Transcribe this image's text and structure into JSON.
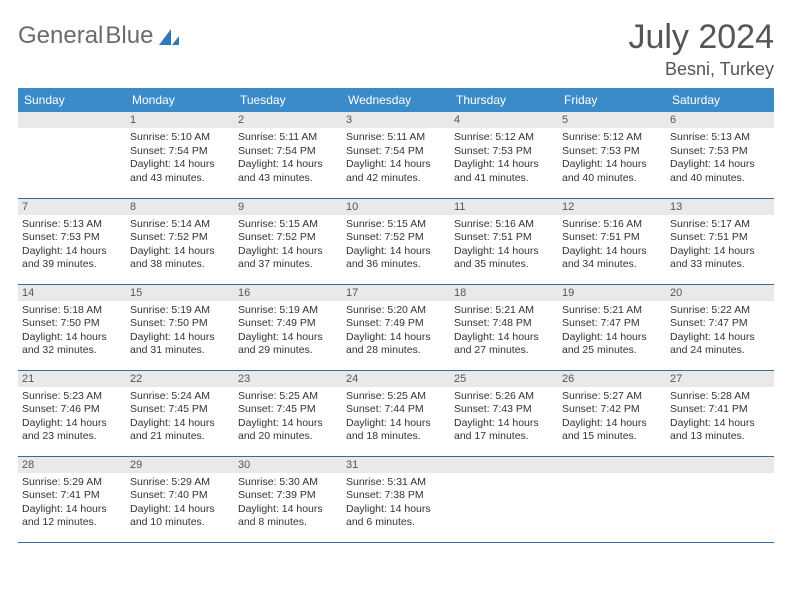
{
  "logo": {
    "text_gray": "General",
    "text_blue": "Blue"
  },
  "header": {
    "month_title": "July 2024",
    "location": "Besni, Turkey"
  },
  "columns": [
    "Sunday",
    "Monday",
    "Tuesday",
    "Wednesday",
    "Thursday",
    "Friday",
    "Saturday"
  ],
  "colors": {
    "header_bg": "#3b8bc9",
    "row_divider": "#2d6ea8",
    "daynum_bg": "#e9e9e9",
    "logo_gray": "#6b6b6b",
    "logo_blue": "#2f78bc"
  },
  "weeks": [
    [
      {
        "day": "",
        "sr": "",
        "ss": "",
        "dl": ""
      },
      {
        "day": "1",
        "sr": "Sunrise: 5:10 AM",
        "ss": "Sunset: 7:54 PM",
        "dl": "Daylight: 14 hours and 43 minutes."
      },
      {
        "day": "2",
        "sr": "Sunrise: 5:11 AM",
        "ss": "Sunset: 7:54 PM",
        "dl": "Daylight: 14 hours and 43 minutes."
      },
      {
        "day": "3",
        "sr": "Sunrise: 5:11 AM",
        "ss": "Sunset: 7:54 PM",
        "dl": "Daylight: 14 hours and 42 minutes."
      },
      {
        "day": "4",
        "sr": "Sunrise: 5:12 AM",
        "ss": "Sunset: 7:53 PM",
        "dl": "Daylight: 14 hours and 41 minutes."
      },
      {
        "day": "5",
        "sr": "Sunrise: 5:12 AM",
        "ss": "Sunset: 7:53 PM",
        "dl": "Daylight: 14 hours and 40 minutes."
      },
      {
        "day": "6",
        "sr": "Sunrise: 5:13 AM",
        "ss": "Sunset: 7:53 PM",
        "dl": "Daylight: 14 hours and 40 minutes."
      }
    ],
    [
      {
        "day": "7",
        "sr": "Sunrise: 5:13 AM",
        "ss": "Sunset: 7:53 PM",
        "dl": "Daylight: 14 hours and 39 minutes."
      },
      {
        "day": "8",
        "sr": "Sunrise: 5:14 AM",
        "ss": "Sunset: 7:52 PM",
        "dl": "Daylight: 14 hours and 38 minutes."
      },
      {
        "day": "9",
        "sr": "Sunrise: 5:15 AM",
        "ss": "Sunset: 7:52 PM",
        "dl": "Daylight: 14 hours and 37 minutes."
      },
      {
        "day": "10",
        "sr": "Sunrise: 5:15 AM",
        "ss": "Sunset: 7:52 PM",
        "dl": "Daylight: 14 hours and 36 minutes."
      },
      {
        "day": "11",
        "sr": "Sunrise: 5:16 AM",
        "ss": "Sunset: 7:51 PM",
        "dl": "Daylight: 14 hours and 35 minutes."
      },
      {
        "day": "12",
        "sr": "Sunrise: 5:16 AM",
        "ss": "Sunset: 7:51 PM",
        "dl": "Daylight: 14 hours and 34 minutes."
      },
      {
        "day": "13",
        "sr": "Sunrise: 5:17 AM",
        "ss": "Sunset: 7:51 PM",
        "dl": "Daylight: 14 hours and 33 minutes."
      }
    ],
    [
      {
        "day": "14",
        "sr": "Sunrise: 5:18 AM",
        "ss": "Sunset: 7:50 PM",
        "dl": "Daylight: 14 hours and 32 minutes."
      },
      {
        "day": "15",
        "sr": "Sunrise: 5:19 AM",
        "ss": "Sunset: 7:50 PM",
        "dl": "Daylight: 14 hours and 31 minutes."
      },
      {
        "day": "16",
        "sr": "Sunrise: 5:19 AM",
        "ss": "Sunset: 7:49 PM",
        "dl": "Daylight: 14 hours and 29 minutes."
      },
      {
        "day": "17",
        "sr": "Sunrise: 5:20 AM",
        "ss": "Sunset: 7:49 PM",
        "dl": "Daylight: 14 hours and 28 minutes."
      },
      {
        "day": "18",
        "sr": "Sunrise: 5:21 AM",
        "ss": "Sunset: 7:48 PM",
        "dl": "Daylight: 14 hours and 27 minutes."
      },
      {
        "day": "19",
        "sr": "Sunrise: 5:21 AM",
        "ss": "Sunset: 7:47 PM",
        "dl": "Daylight: 14 hours and 25 minutes."
      },
      {
        "day": "20",
        "sr": "Sunrise: 5:22 AM",
        "ss": "Sunset: 7:47 PM",
        "dl": "Daylight: 14 hours and 24 minutes."
      }
    ],
    [
      {
        "day": "21",
        "sr": "Sunrise: 5:23 AM",
        "ss": "Sunset: 7:46 PM",
        "dl": "Daylight: 14 hours and 23 minutes."
      },
      {
        "day": "22",
        "sr": "Sunrise: 5:24 AM",
        "ss": "Sunset: 7:45 PM",
        "dl": "Daylight: 14 hours and 21 minutes."
      },
      {
        "day": "23",
        "sr": "Sunrise: 5:25 AM",
        "ss": "Sunset: 7:45 PM",
        "dl": "Daylight: 14 hours and 20 minutes."
      },
      {
        "day": "24",
        "sr": "Sunrise: 5:25 AM",
        "ss": "Sunset: 7:44 PM",
        "dl": "Daylight: 14 hours and 18 minutes."
      },
      {
        "day": "25",
        "sr": "Sunrise: 5:26 AM",
        "ss": "Sunset: 7:43 PM",
        "dl": "Daylight: 14 hours and 17 minutes."
      },
      {
        "day": "26",
        "sr": "Sunrise: 5:27 AM",
        "ss": "Sunset: 7:42 PM",
        "dl": "Daylight: 14 hours and 15 minutes."
      },
      {
        "day": "27",
        "sr": "Sunrise: 5:28 AM",
        "ss": "Sunset: 7:41 PM",
        "dl": "Daylight: 14 hours and 13 minutes."
      }
    ],
    [
      {
        "day": "28",
        "sr": "Sunrise: 5:29 AM",
        "ss": "Sunset: 7:41 PM",
        "dl": "Daylight: 14 hours and 12 minutes."
      },
      {
        "day": "29",
        "sr": "Sunrise: 5:29 AM",
        "ss": "Sunset: 7:40 PM",
        "dl": "Daylight: 14 hours and 10 minutes."
      },
      {
        "day": "30",
        "sr": "Sunrise: 5:30 AM",
        "ss": "Sunset: 7:39 PM",
        "dl": "Daylight: 14 hours and 8 minutes."
      },
      {
        "day": "31",
        "sr": "Sunrise: 5:31 AM",
        "ss": "Sunset: 7:38 PM",
        "dl": "Daylight: 14 hours and 6 minutes."
      },
      {
        "day": "",
        "sr": "",
        "ss": "",
        "dl": ""
      },
      {
        "day": "",
        "sr": "",
        "ss": "",
        "dl": ""
      },
      {
        "day": "",
        "sr": "",
        "ss": "",
        "dl": ""
      }
    ]
  ]
}
